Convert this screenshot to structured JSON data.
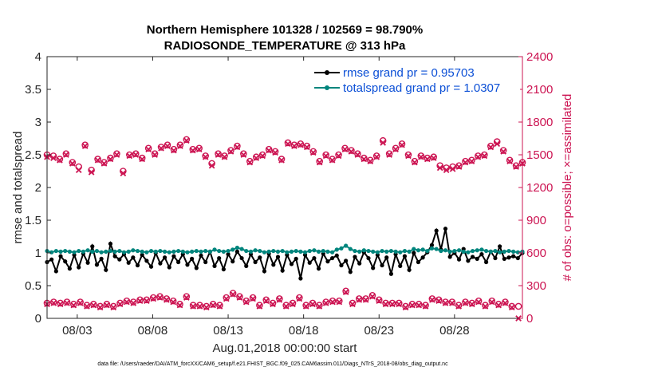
{
  "chart_data": {
    "type": "line",
    "title_line1": "Northern Hemisphere 101328 / 102569 = 98.790%",
    "title_line2": "RADIOSONDE_TEMPERATURE @ 313 hPa",
    "xlabel": "Aug.01,2018 00:00:00 start",
    "ylabel": "rmse and totalspread",
    "ylabel_right": "# of obs: o=possible; ×=assimilated",
    "footer": "data file: /Users/raeder/DAI/ATM_forcXX/CAM6_setup/f.e21.FHIST_BGC.f09_025.CAM6assim.011/Diags_NTrS_2018-08/obs_diag_output.nc",
    "xlim": [
      1,
      32.5
    ],
    "ylim": [
      0,
      4
    ],
    "ylim_right": [
      0,
      2400
    ],
    "x_ticks": [
      3,
      8,
      13,
      18,
      23,
      28
    ],
    "x_tick_labels": [
      "08/03",
      "08/08",
      "08/13",
      "08/18",
      "08/23",
      "08/28"
    ],
    "y_ticks": [
      0,
      0.5,
      1,
      1.5,
      2,
      2.5,
      3,
      3.5,
      4
    ],
    "y_tick_labels": [
      "0",
      "0.5",
      "1",
      "1.5",
      "2",
      "2.5",
      "3",
      "3.5",
      "4"
    ],
    "y_right_ticks": [
      0,
      300,
      600,
      900,
      1200,
      1500,
      1800,
      2100,
      2400
    ],
    "y_right_tick_labels": [
      "0",
      "300",
      "600",
      "900",
      "1200",
      "1500",
      "1800",
      "2100",
      "2400"
    ],
    "series": [
      {
        "name": "rmse grand pr = 0.95703",
        "axis": "left",
        "color": "#000000",
        "values": [
          0.86,
          0.9,
          0.72,
          0.95,
          0.87,
          0.76,
          0.97,
          0.78,
          0.99,
          0.85,
          1.1,
          0.82,
          0.91,
          0.74,
          1.14,
          0.95,
          0.9,
          0.98,
          0.85,
          0.93,
          0.81,
          0.97,
          0.88,
          0.79,
          1.0,
          0.84,
          0.93,
          0.78,
          0.95,
          0.86,
          0.98,
          0.82,
          0.91,
          0.77,
          0.96,
          0.86,
          1.02,
          0.8,
          0.92,
          0.75,
          0.98,
          0.87,
          1.02,
          0.92,
          0.8,
          0.98,
          0.86,
          0.93,
          0.72,
          0.99,
          0.82,
          0.94,
          0.73,
          0.97,
          0.83,
          0.91,
          0.61,
          0.97,
          0.85,
          0.92,
          0.76,
          0.99,
          0.87,
          0.92,
          0.96,
          0.81,
          0.88,
          0.71,
          0.94,
          0.84,
          1.01,
          0.92,
          0.77,
          0.97,
          0.81,
          0.93,
          0.68,
          0.98,
          0.8,
          0.95,
          0.74,
          1.0,
          0.86,
          0.93,
          1.01,
          1.12,
          1.34,
          1.05,
          1.37,
          0.94,
          1.0,
          0.9,
          1.06,
          0.88,
          0.94,
          0.91,
          0.98,
          0.86,
          1.02,
          0.92,
          1.1,
          0.91,
          0.93,
          0.95,
          0.92,
          1.0,
          0.82
        ],
        "x_start": 1.0,
        "x_step": 0.3
      },
      {
        "name": "totalspread grand pr = 1.0307",
        "axis": "left",
        "color": "#00857d",
        "values": [
          1.03,
          1.01,
          1.03,
          1.02,
          1.03,
          1.02,
          1.01,
          1.03,
          1.02,
          1.04,
          1.02,
          1.03,
          1.01,
          1.02,
          1.03,
          1.02,
          1.03,
          1.01,
          1.02,
          1.04,
          1.03,
          1.02,
          1.01,
          1.03,
          1.02,
          1.03,
          1.02,
          1.01,
          1.02,
          1.03,
          1.02,
          1.01,
          1.02,
          1.03,
          1.02,
          1.03,
          1.02,
          1.05,
          1.03,
          1.02,
          1.03,
          1.05,
          1.08,
          1.06,
          1.03,
          1.02,
          1.04,
          1.03,
          1.01,
          1.02,
          1.03,
          1.02,
          1.03,
          1.01,
          1.02,
          1.03,
          1.02,
          1.01,
          1.03,
          1.04,
          1.02,
          1.03,
          1.02,
          1.01,
          1.05,
          1.07,
          1.11,
          1.06,
          1.03,
          1.02,
          1.04,
          1.03,
          1.02,
          1.01,
          1.03,
          1.02,
          1.03,
          1.02,
          1.01,
          1.03,
          1.02,
          1.06,
          1.04,
          1.05,
          1.03,
          1.07,
          1.06,
          1.03,
          1.04,
          1.02,
          1.03,
          1.04,
          1.02,
          1.01,
          1.03,
          1.04,
          1.05,
          1.03,
          1.02,
          1.03,
          1.01,
          1.02,
          1.03,
          1.02,
          1.01,
          1.02,
          1.02
        ],
        "x_start": 1.0,
        "x_step": 0.3
      },
      {
        "name": "obs possible",
        "axis": "right",
        "color": "#cc1452",
        "marker": "o",
        "values": [
          1500,
          1490,
          1460,
          1510,
          1430,
          1390,
          1590,
          1360,
          1460,
          1430,
          1470,
          1510,
          1350,
          1500,
          1510,
          1470,
          1560,
          1510,
          1570,
          1590,
          1550,
          1590,
          1640,
          1550,
          1560,
          1490,
          1420,
          1510,
          1490,
          1540,
          1580,
          1510,
          1440,
          1480,
          1500,
          1550,
          1530,
          1460,
          1610,
          1590,
          1600,
          1580,
          1530,
          1440,
          1500,
          1460,
          1500,
          1560,
          1540,
          1510,
          1470,
          1450,
          1490,
          1630,
          1510,
          1560,
          1600,
          1500,
          1440,
          1490,
          1470,
          1480,
          1400,
          1380,
          1390,
          1400,
          1440,
          1450,
          1490,
          1500,
          1580,
          1620,
          1540,
          1450,
          1400,
          1430
        ],
        "x_start": 1.0,
        "x_step": 0.42
      },
      {
        "name": "obs assimilated",
        "axis": "right",
        "color": "#cc1452",
        "marker": "x",
        "values": [
          1480,
          1470,
          1450,
          1500,
          1420,
          1360,
          1580,
          1340,
          1450,
          1420,
          1460,
          1500,
          1330,
          1490,
          1500,
          1460,
          1550,
          1500,
          1560,
          1580,
          1540,
          1580,
          1630,
          1540,
          1550,
          1480,
          1400,
          1500,
          1480,
          1530,
          1570,
          1500,
          1430,
          1470,
          1490,
          1540,
          1520,
          1450,
          1600,
          1580,
          1590,
          1570,
          1520,
          1430,
          1490,
          1450,
          1490,
          1550,
          1530,
          1500,
          1460,
          1440,
          1480,
          1610,
          1500,
          1550,
          1590,
          1490,
          1430,
          1480,
          1460,
          1470,
          1380,
          1360,
          1370,
          1390,
          1430,
          1440,
          1480,
          1490,
          1570,
          1600,
          1530,
          1440,
          1390,
          1420
        ],
        "x_start": 1.0,
        "x_step": 0.42
      },
      {
        "name": "obs possible (lower)",
        "axis": "right",
        "color": "#cc1452",
        "marker": "o",
        "values": [
          140,
          150,
          140,
          150,
          130,
          150,
          120,
          130,
          110,
          130,
          110,
          140,
          160,
          150,
          170,
          170,
          190,
          200,
          180,
          160,
          130,
          200,
          120,
          120,
          110,
          130,
          120,
          190,
          230,
          200,
          160,
          190,
          120,
          170,
          140,
          180,
          120,
          140,
          190,
          120,
          140,
          120,
          150,
          160,
          160,
          250,
          140,
          180,
          180,
          210,
          170,
          140,
          140,
          140,
          110,
          130,
          130,
          120,
          180,
          170,
          150,
          150,
          120,
          150,
          140,
          160,
          120,
          160,
          130,
          150,
          110,
          110
        ],
        "x_start": 1.0,
        "x_step": 0.44
      },
      {
        "name": "obs assimilated (lower)",
        "axis": "right",
        "color": "#cc1452",
        "marker": "x",
        "values": [
          130,
          140,
          130,
          140,
          120,
          140,
          110,
          120,
          100,
          120,
          100,
          130,
          150,
          140,
          160,
          160,
          180,
          190,
          170,
          150,
          120,
          190,
          110,
          110,
          100,
          120,
          110,
          180,
          220,
          190,
          150,
          180,
          110,
          160,
          130,
          170,
          110,
          130,
          180,
          110,
          130,
          110,
          140,
          150,
          150,
          240,
          130,
          170,
          170,
          200,
          160,
          130,
          130,
          130,
          100,
          120,
          120,
          110,
          170,
          160,
          140,
          140,
          110,
          140,
          130,
          150,
          110,
          150,
          120,
          140,
          100,
          0
        ],
        "x_start": 1.0,
        "x_step": 0.44
      }
    ],
    "legend": {
      "position": "top-right",
      "entries": [
        "rmse grand pr = 0.95703",
        "totalspread grand pr = 1.0307"
      ]
    }
  }
}
